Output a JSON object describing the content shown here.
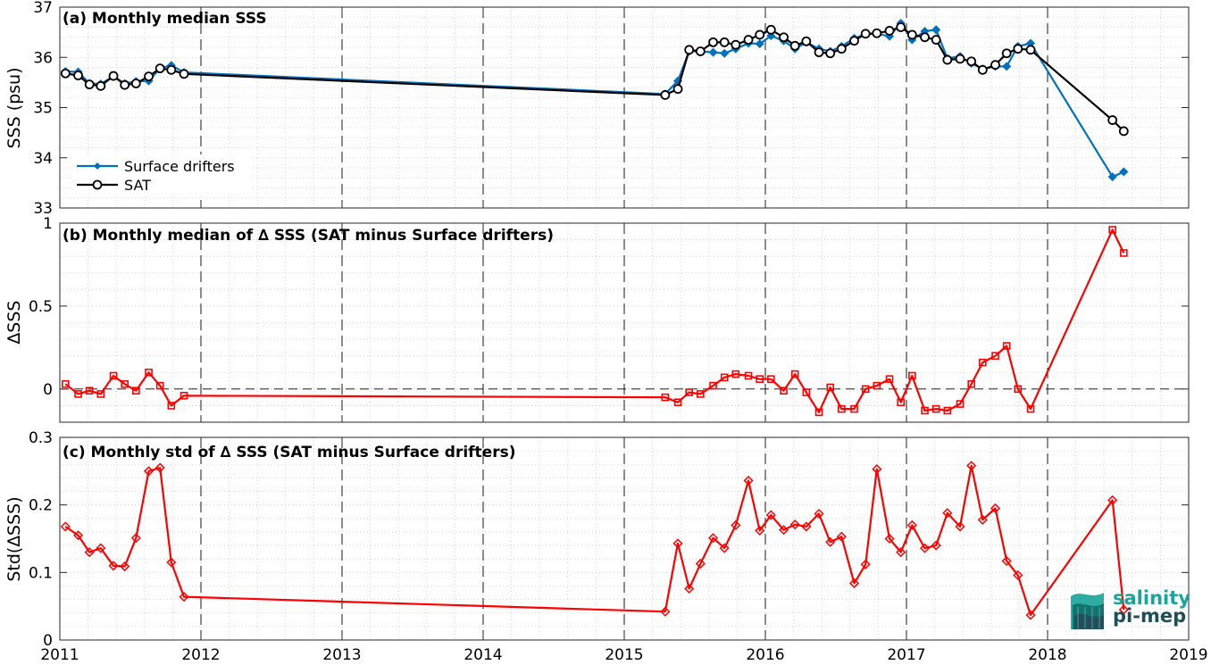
{
  "chart_data": [
    {
      "type": "line",
      "title": "(a) Monthly median SSS",
      "ylabel": "SSS (psu)",
      "xlim": [
        2011,
        2019
      ],
      "ylim": [
        33,
        37
      ],
      "yticks": [
        "33",
        "34",
        "35",
        "36",
        "37"
      ],
      "grid": "minor dotted, dashed vertical lines at each year",
      "legend_position": "bottom-left",
      "series": [
        {
          "name": "Surface drifters",
          "color": "#0072BD",
          "marker": "diamond",
          "x": [
            2011.04,
            2011.13,
            2011.21,
            2011.29,
            2011.38,
            2011.46,
            2011.54,
            2011.63,
            2011.71,
            2011.79,
            2011.88,
            2015.29,
            2015.38,
            2015.46,
            2015.54,
            2015.63,
            2015.71,
            2015.79,
            2015.88,
            2015.96,
            2016.04,
            2016.13,
            2016.21,
            2016.29,
            2016.38,
            2016.46,
            2016.54,
            2016.63,
            2016.71,
            2016.79,
            2016.88,
            2016.96,
            2017.04,
            2017.13,
            2017.21,
            2017.29,
            2017.38,
            2017.46,
            2017.54,
            2017.63,
            2017.71,
            2017.79,
            2017.88,
            2018.46,
            2018.54
          ],
          "values": [
            35.72,
            35.71,
            35.48,
            35.47,
            35.62,
            35.48,
            35.52,
            35.53,
            35.78,
            35.84,
            35.7,
            35.27,
            35.53,
            36.12,
            36.12,
            36.1,
            36.08,
            36.17,
            36.28,
            36.27,
            36.43,
            36.33,
            36.17,
            36.3,
            36.17,
            36.12,
            36.22,
            36.38,
            36.46,
            36.47,
            36.42,
            36.68,
            36.35,
            36.52,
            36.55,
            35.98,
            36.02,
            35.88,
            35.77,
            35.82,
            35.82,
            36.22,
            36.28,
            33.62,
            33.72
          ]
        },
        {
          "name": "SAT",
          "color": "#000000",
          "marker": "circle",
          "x": [
            2011.04,
            2011.13,
            2011.21,
            2011.29,
            2011.38,
            2011.46,
            2011.54,
            2011.63,
            2011.71,
            2011.79,
            2011.88,
            2015.29,
            2015.38,
            2015.46,
            2015.54,
            2015.63,
            2015.71,
            2015.79,
            2015.88,
            2015.96,
            2016.04,
            2016.13,
            2016.21,
            2016.29,
            2016.38,
            2016.46,
            2016.54,
            2016.63,
            2016.71,
            2016.79,
            2016.88,
            2016.96,
            2017.04,
            2017.13,
            2017.21,
            2017.29,
            2017.38,
            2017.46,
            2017.54,
            2017.63,
            2017.71,
            2017.79,
            2017.88,
            2018.46,
            2018.54
          ],
          "values": [
            35.68,
            35.64,
            35.46,
            35.43,
            35.63,
            35.45,
            35.48,
            35.62,
            35.78,
            35.75,
            35.67,
            35.25,
            35.37,
            36.15,
            36.12,
            36.3,
            36.3,
            36.25,
            36.35,
            36.45,
            36.55,
            36.4,
            36.23,
            36.32,
            36.1,
            36.08,
            36.17,
            36.33,
            36.47,
            36.48,
            36.53,
            36.6,
            36.45,
            36.4,
            36.35,
            35.95,
            35.97,
            35.92,
            35.75,
            35.85,
            36.08,
            36.17,
            36.15,
            34.75,
            34.53
          ]
        }
      ]
    },
    {
      "type": "line",
      "title": "(b) Monthly median of ∆ SSS (SAT minus Surface drifters)",
      "ylabel": "∆SSS",
      "xlim": [
        2011,
        2019
      ],
      "ylim": [
        -0.2,
        1
      ],
      "yticks": [
        "0",
        "0.5",
        "1"
      ],
      "grid": "minor dotted, dashed vertical lines at each year, dashed zero line",
      "series": [
        {
          "color": "#FF0000",
          "marker": "square",
          "x": [
            2011.04,
            2011.13,
            2011.21,
            2011.29,
            2011.38,
            2011.46,
            2011.54,
            2011.63,
            2011.71,
            2011.79,
            2011.88,
            2015.29,
            2015.38,
            2015.46,
            2015.54,
            2015.63,
            2015.71,
            2015.79,
            2015.88,
            2015.96,
            2016.04,
            2016.13,
            2016.21,
            2016.29,
            2016.38,
            2016.46,
            2016.54,
            2016.63,
            2016.71,
            2016.79,
            2016.88,
            2016.96,
            2017.04,
            2017.13,
            2017.21,
            2017.29,
            2017.38,
            2017.46,
            2017.54,
            2017.63,
            2017.71,
            2017.79,
            2017.88,
            2018.46,
            2018.54
          ],
          "values": [
            0.03,
            -0.03,
            -0.01,
            -0.03,
            0.08,
            0.03,
            -0.01,
            0.1,
            0.02,
            -0.1,
            -0.04,
            -0.05,
            -0.08,
            -0.02,
            -0.03,
            0.02,
            0.07,
            0.09,
            0.08,
            0.06,
            0.06,
            -0.01,
            0.09,
            -0.02,
            -0.14,
            0.01,
            -0.12,
            -0.12,
            0.0,
            0.02,
            0.06,
            -0.08,
            0.08,
            -0.13,
            -0.12,
            -0.13,
            -0.09,
            0.03,
            0.16,
            0.2,
            0.26,
            0.0,
            -0.12,
            0.96,
            0.82
          ]
        }
      ]
    },
    {
      "type": "line",
      "title": "(c) Monthly std of ∆ SSS (SAT minus Surface drifters)",
      "ylabel": "Std(∆SSS)",
      "xlim": [
        2011,
        2019
      ],
      "ylim": [
        0,
        0.3
      ],
      "yticks": [
        "0",
        "0.1",
        "0.2",
        "0.3"
      ],
      "xticks": [
        "2011",
        "2012",
        "2013",
        "2014",
        "2015",
        "2016",
        "2017",
        "2018",
        "2019"
      ],
      "grid": "minor dotted, dashed vertical lines at each year",
      "series": [
        {
          "color": "#FF0000",
          "marker": "diamond",
          "x": [
            2011.04,
            2011.13,
            2011.21,
            2011.29,
            2011.38,
            2011.46,
            2011.54,
            2011.63,
            2011.71,
            2011.79,
            2011.88,
            2015.29,
            2015.38,
            2015.46,
            2015.54,
            2015.63,
            2015.71,
            2015.79,
            2015.88,
            2015.96,
            2016.04,
            2016.13,
            2016.21,
            2016.29,
            2016.38,
            2016.46,
            2016.54,
            2016.63,
            2016.71,
            2016.79,
            2016.88,
            2016.96,
            2017.04,
            2017.13,
            2017.21,
            2017.29,
            2017.38,
            2017.46,
            2017.54,
            2017.63,
            2017.71,
            2017.79,
            2017.88,
            2018.46,
            2018.54
          ],
          "values": [
            0.168,
            0.155,
            0.13,
            0.136,
            0.11,
            0.109,
            0.151,
            0.25,
            0.255,
            0.115,
            0.064,
            0.042,
            0.143,
            0.076,
            0.113,
            0.151,
            0.136,
            0.17,
            0.236,
            0.162,
            0.185,
            0.163,
            0.171,
            0.168,
            0.187,
            0.145,
            0.153,
            0.084,
            0.112,
            0.253,
            0.15,
            0.13,
            0.17,
            0.136,
            0.14,
            0.188,
            0.168,
            0.258,
            0.178,
            0.195,
            0.117,
            0.096,
            0.037,
            0.207,
            0.045
          ]
        }
      ]
    }
  ],
  "logo": {
    "line1": "salinity",
    "line2": "pi-mep",
    "colors": [
      "#1aa59a",
      "#0f6f69",
      "#1f4e5a"
    ]
  }
}
